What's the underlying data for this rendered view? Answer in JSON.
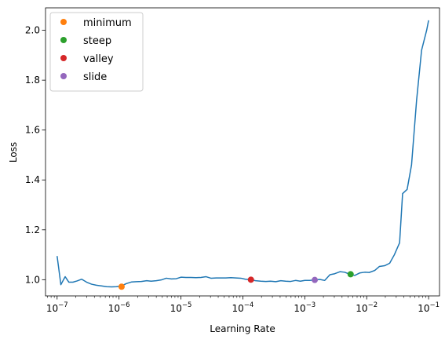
{
  "chart_data": {
    "type": "line",
    "xscale": "log",
    "xlabel": "Learning Rate",
    "ylabel": "Loss",
    "xlim": [
      6.5e-08,
      0.15
    ],
    "ylim": [
      0.935,
      2.09
    ],
    "xticks": [
      {
        "value": 1e-07,
        "base": "10",
        "exp": "−7"
      },
      {
        "value": 1e-06,
        "base": "10",
        "exp": "−6"
      },
      {
        "value": 1e-05,
        "base": "10",
        "exp": "−5"
      },
      {
        "value": 0.0001,
        "base": "10",
        "exp": "−4"
      },
      {
        "value": 0.001,
        "base": "10",
        "exp": "−3"
      },
      {
        "value": 0.01,
        "base": "10",
        "exp": "−2"
      },
      {
        "value": 0.1,
        "base": "10",
        "exp": "−1"
      }
    ],
    "yticks": [
      {
        "value": 1.0,
        "label": "1.0"
      },
      {
        "value": 1.2,
        "label": "1.2"
      },
      {
        "value": 1.4,
        "label": "1.4"
      },
      {
        "value": 1.6,
        "label": "1.6"
      },
      {
        "value": 1.8,
        "label": "1.8"
      },
      {
        "value": 2.0,
        "label": "2.0"
      }
    ],
    "series": [
      {
        "color": "#1f77b4",
        "x": [
          1e-07,
          1.15e-07,
          1.35e-07,
          1.55e-07,
          1.8e-07,
          2.1e-07,
          2.5e-07,
          3e-07,
          3.6e-07,
          4.3e-07,
          5.2e-07,
          6.3e-07,
          7.6e-07,
          9.1e-07,
          1.1e-06,
          1.3e-06,
          1.6e-06,
          1.9e-06,
          2.3e-06,
          2.8e-06,
          3.3e-06,
          4e-06,
          4.8e-06,
          5.8e-06,
          7e-06,
          8.4e-06,
          1e-05,
          1.2e-05,
          1.45e-05,
          1.75e-05,
          2.1e-05,
          2.55e-05,
          3.05e-05,
          3.7e-05,
          4.4e-05,
          5.3e-05,
          6.4e-05,
          7.7e-05,
          9.3e-05,
          0.00011,
          0.000135,
          0.00016,
          0.000195,
          0.000235,
          0.00028,
          0.00034,
          0.00041,
          0.00049,
          0.00059,
          0.00071,
          0.00085,
          0.001,
          0.0012,
          0.00145,
          0.00175,
          0.0021,
          0.00255,
          0.00305,
          0.0037,
          0.0044,
          0.0053,
          0.0064,
          0.0077,
          0.0093,
          0.011,
          0.0135,
          0.016,
          0.0195,
          0.0235,
          0.028,
          0.034,
          0.038,
          0.045,
          0.053,
          0.064,
          0.077,
          0.093,
          0.1
        ],
        "y": [
          1.095,
          0.98,
          1.012,
          0.99,
          0.99,
          0.995,
          1.002,
          0.99,
          0.982,
          0.978,
          0.975,
          0.972,
          0.971,
          0.972,
          0.975,
          0.984,
          0.991,
          0.992,
          0.993,
          0.996,
          0.994,
          0.996,
          0.999,
          1.006,
          1.003,
          1.004,
          1.01,
          1.009,
          1.009,
          1.008,
          1.009,
          1.012,
          1.006,
          1.007,
          1.007,
          1.007,
          1.008,
          1.007,
          1.006,
          1.002,
          1.0,
          0.996,
          0.994,
          0.993,
          0.994,
          0.992,
          0.996,
          0.994,
          0.993,
          0.997,
          0.994,
          0.997,
          0.997,
          0.999,
          1.001,
          0.997,
          1.02,
          1.024,
          1.032,
          1.03,
          1.022,
          1.017,
          1.027,
          1.03,
          1.029,
          1.037,
          1.053,
          1.056,
          1.066,
          1.1,
          1.148,
          1.345,
          1.362,
          1.46,
          1.72,
          1.92,
          2.0,
          2.04
        ]
      }
    ],
    "markers": [
      {
        "name": "minimum",
        "color": "#ff7f0e",
        "x": 1.1e-06,
        "y": 0.972
      },
      {
        "name": "steep",
        "color": "#2ca02c",
        "x": 0.0055,
        "y": 1.022
      },
      {
        "name": "valley",
        "color": "#d62728",
        "x": 0.000135,
        "y": 1.0
      },
      {
        "name": "slide",
        "color": "#9467bd",
        "x": 0.00145,
        "y": 0.999
      }
    ],
    "legend": {
      "position": "top-left",
      "entries": [
        {
          "label": "minimum",
          "color": "#ff7f0e"
        },
        {
          "label": "steep",
          "color": "#2ca02c"
        },
        {
          "label": "valley",
          "color": "#d62728"
        },
        {
          "label": "slide",
          "color": "#9467bd"
        }
      ]
    },
    "grid": false
  }
}
